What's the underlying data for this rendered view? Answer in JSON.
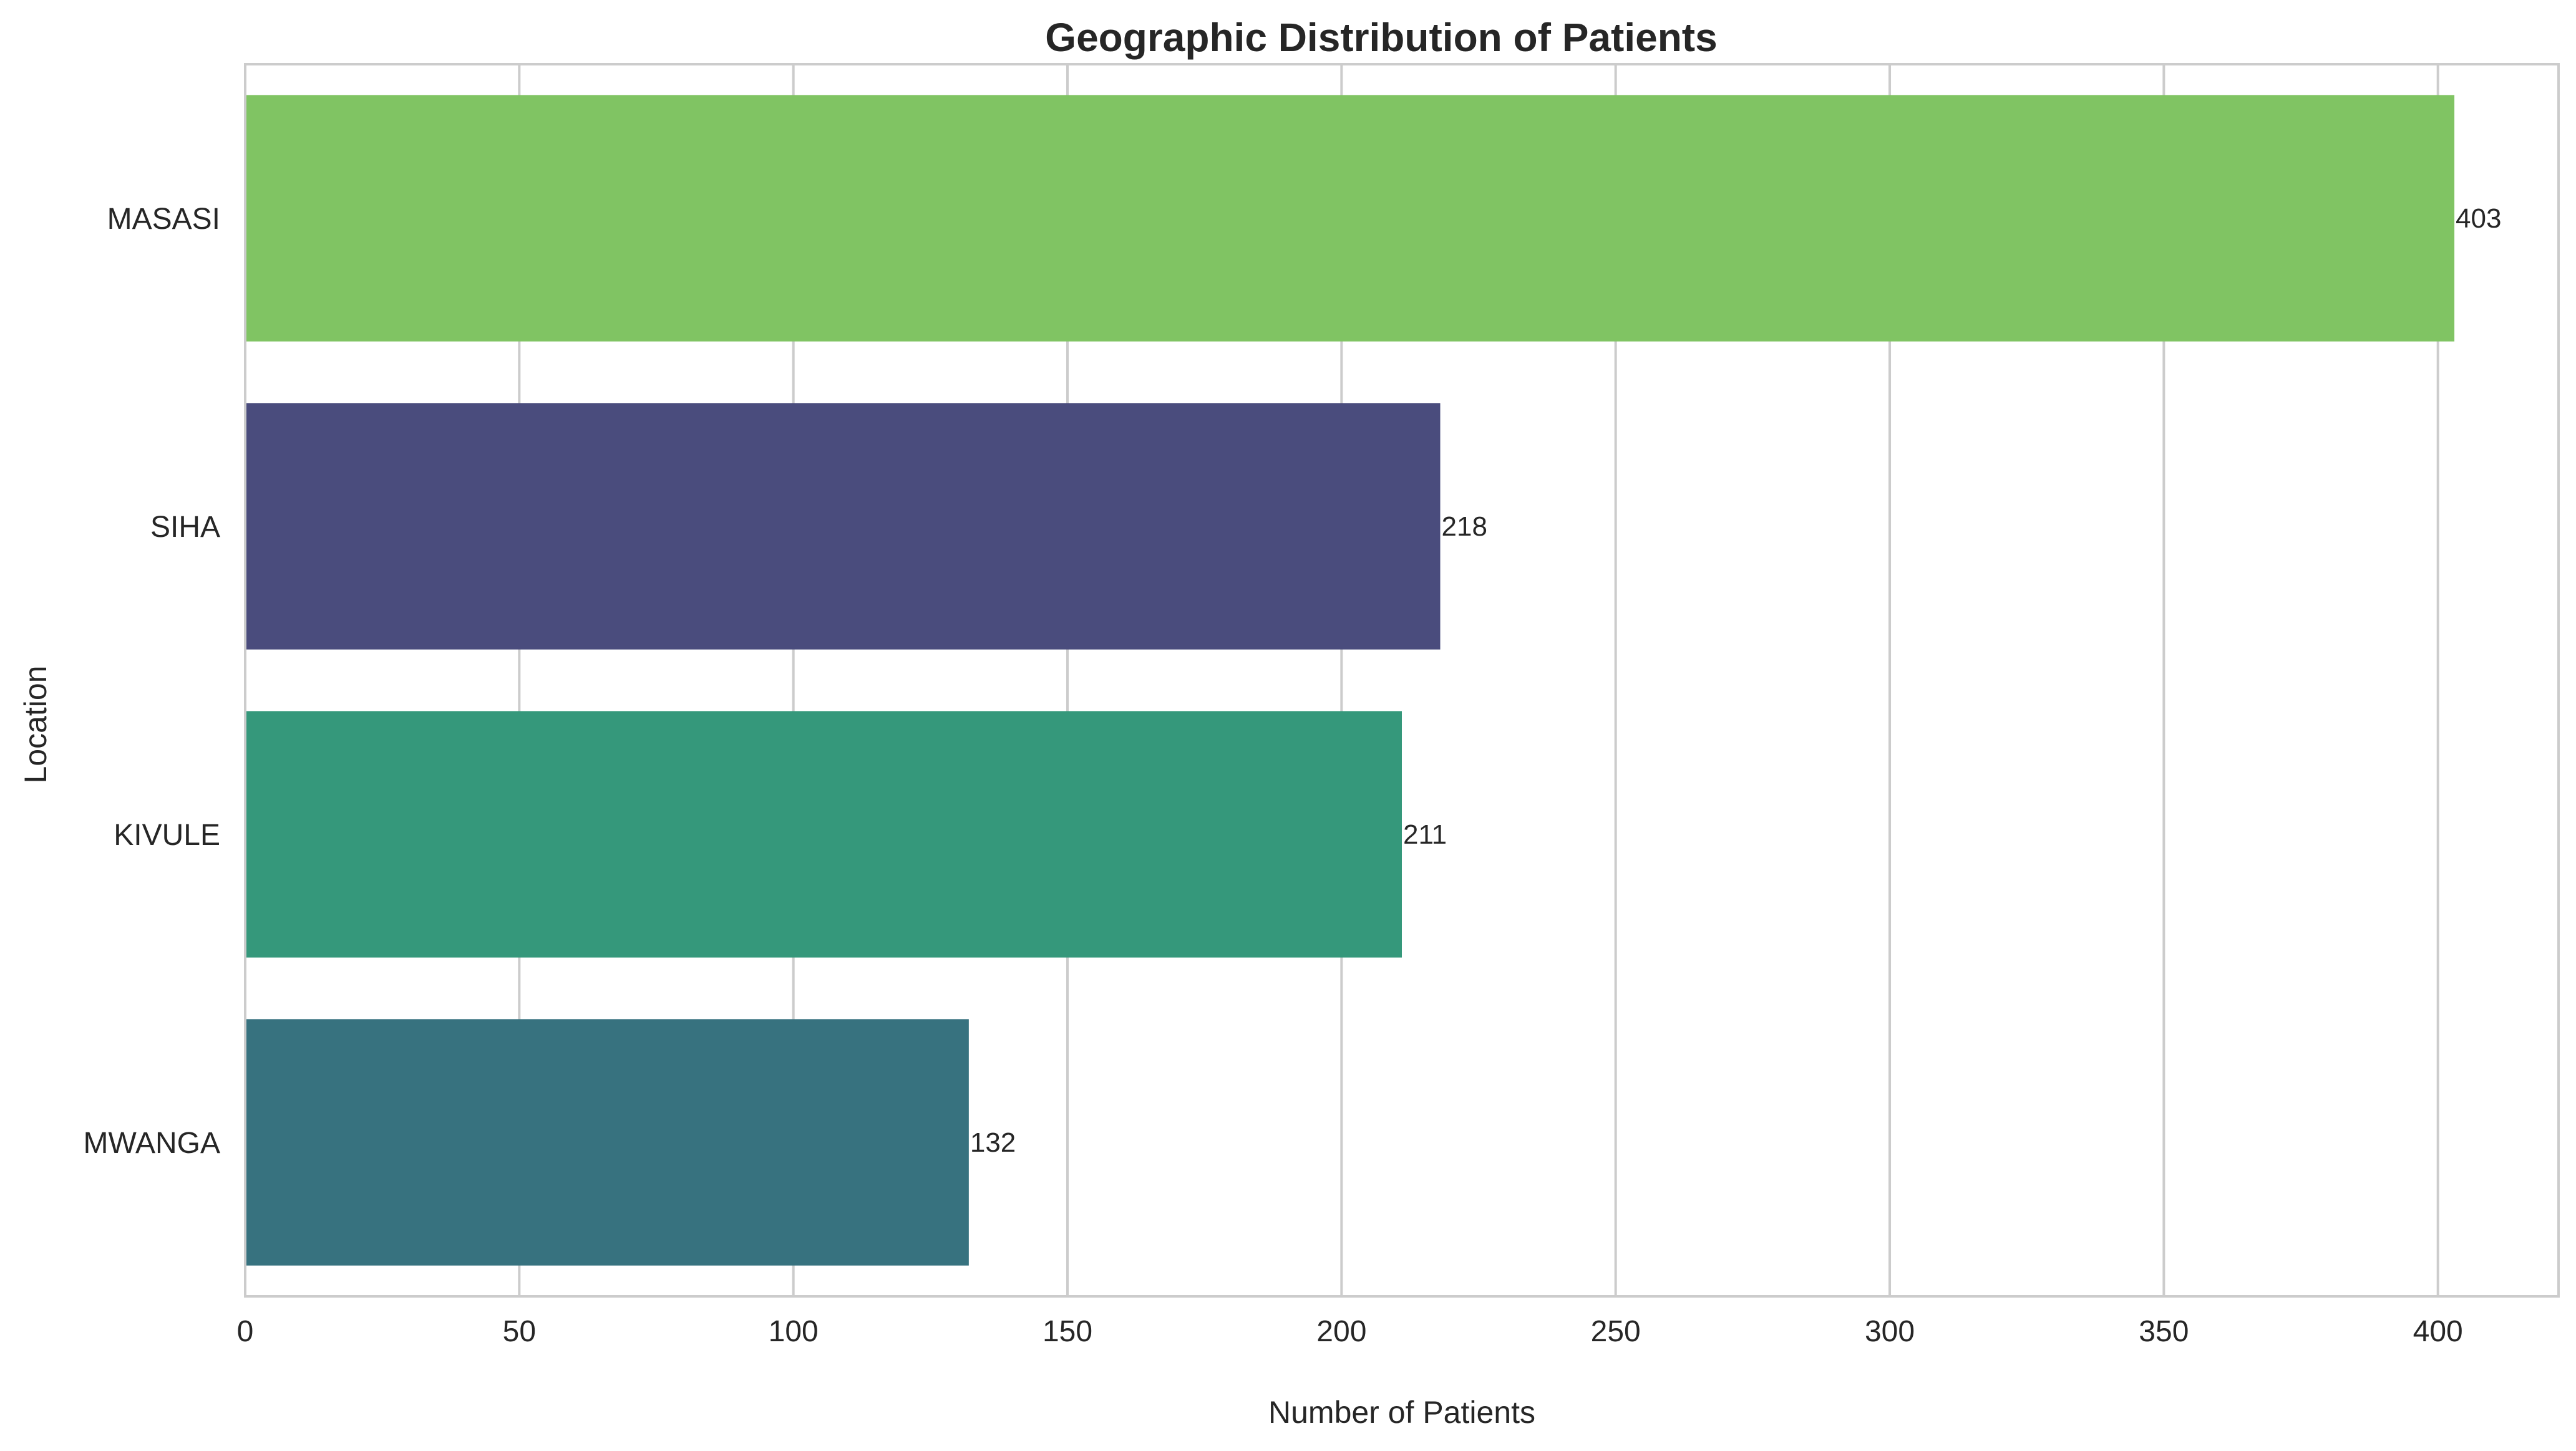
{
  "chart_data": {
    "type": "bar",
    "orientation": "horizontal",
    "title": "Geographic Distribution of Patients",
    "xlabel": "Number of Patients",
    "ylabel": "Location",
    "categories": [
      "MASASI",
      "SIHA",
      "KIVULE",
      "MWANGA"
    ],
    "values": [
      403,
      218,
      211,
      132
    ],
    "colors": [
      "#80c463",
      "#4a4c7d",
      "#35987b",
      "#37727f"
    ],
    "xlim": [
      0,
      422
    ],
    "xticks": [
      0,
      50,
      100,
      150,
      200,
      250,
      300,
      350,
      400
    ],
    "grid": true,
    "legend": "none"
  }
}
